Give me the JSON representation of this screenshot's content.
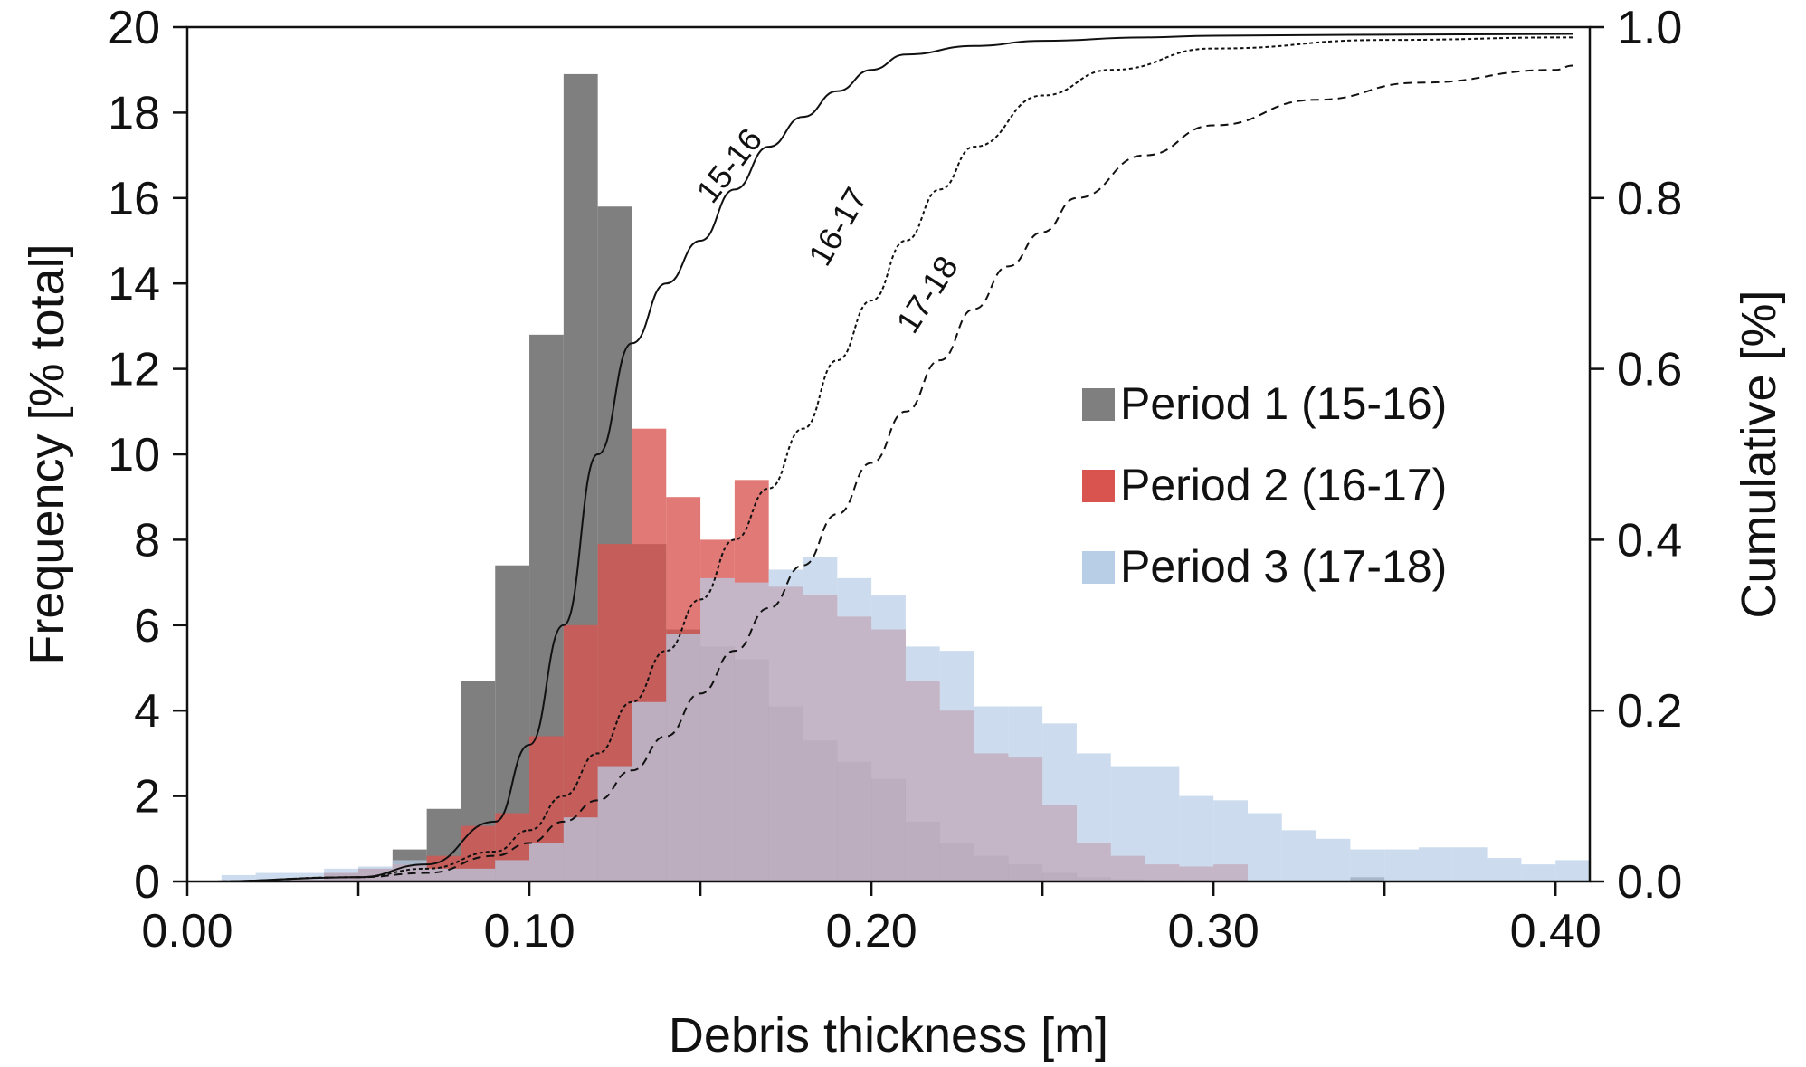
{
  "chart_data": {
    "type": "bar",
    "xlabel": "Debris thickness [m]",
    "ylabel": "Frequency [% total]",
    "y2label": "Cumulative [%]",
    "xlim": [
      0,
      0.41
    ],
    "ylim": [
      0,
      20
    ],
    "y2lim": [
      0,
      1.0
    ],
    "x_ticks": [
      "0.00",
      "0.10",
      "0.20",
      "0.30",
      "0.40"
    ],
    "y_ticks": [
      "0",
      "2",
      "4",
      "6",
      "8",
      "10",
      "12",
      "14",
      "16",
      "18",
      "20"
    ],
    "y2_ticks": [
      "0.0",
      "0.2",
      "0.4",
      "0.6",
      "0.8",
      "1.0"
    ],
    "bin_width": 0.01,
    "bin_starts": [
      0.0,
      0.01,
      0.02,
      0.03,
      0.04,
      0.05,
      0.06,
      0.07,
      0.08,
      0.09,
      0.1,
      0.11,
      0.12,
      0.13,
      0.14,
      0.15,
      0.16,
      0.17,
      0.18,
      0.19,
      0.2,
      0.21,
      0.22,
      0.23,
      0.24,
      0.25,
      0.26,
      0.27,
      0.28,
      0.29,
      0.3,
      0.31,
      0.32,
      0.33,
      0.34,
      0.35,
      0.36,
      0.37,
      0.38,
      0.39,
      0.4
    ],
    "legend_position": "right",
    "series": [
      {
        "name": "Period 1 (15-16)",
        "color": "#7f7f7f",
        "values": [
          0,
          0,
          0,
          0.05,
          0.2,
          0.3,
          0.75,
          1.7,
          4.7,
          7.4,
          12.8,
          18.9,
          15.8,
          7.9,
          5.9,
          5.5,
          5.2,
          4.1,
          3.3,
          2.8,
          2.4,
          1.4,
          0.9,
          0.6,
          0.4,
          0.2,
          0.1,
          0.05,
          0.03,
          0.02,
          0.02,
          0.02,
          0.01,
          0.01,
          0.1,
          0,
          0,
          0,
          0,
          0,
          0
        ]
      },
      {
        "name": "Period 2 (16-17)",
        "color": "#d9534f",
        "values": [
          0,
          0,
          0,
          0.05,
          0.2,
          0.3,
          0.4,
          0.6,
          1.3,
          1.6,
          3.4,
          6.0,
          7.9,
          10.6,
          9.0,
          8.0,
          9.4,
          6.9,
          6.7,
          6.2,
          5.9,
          4.7,
          4.0,
          3.0,
          2.9,
          1.8,
          0.9,
          0.6,
          0.4,
          0.35,
          0.4,
          0,
          0,
          0,
          0,
          0,
          0,
          0,
          0,
          0,
          0
        ]
      },
      {
        "name": "Period 3 (17-18)",
        "color": "#b8cde6",
        "values": [
          0,
          0.15,
          0.2,
          0.2,
          0.3,
          0.35,
          0.5,
          0.3,
          0.3,
          0.5,
          0.9,
          1.5,
          2.7,
          4.2,
          5.8,
          7.1,
          7.0,
          7.3,
          7.6,
          7.1,
          6.7,
          5.5,
          5.4,
          4.1,
          4.1,
          3.7,
          3.0,
          2.7,
          2.7,
          2.0,
          1.9,
          1.6,
          1.2,
          1.0,
          0.75,
          0.75,
          0.8,
          0.8,
          0.55,
          0.4,
          0.5
        ]
      }
    ],
    "cumulative": [
      {
        "label": "15-16",
        "style": "solid",
        "points": [
          [
            0.005,
            0.0
          ],
          [
            0.05,
            0.005
          ],
          [
            0.07,
            0.02
          ],
          [
            0.09,
            0.07
          ],
          [
            0.1,
            0.16
          ],
          [
            0.11,
            0.3
          ],
          [
            0.12,
            0.5
          ],
          [
            0.13,
            0.63
          ],
          [
            0.14,
            0.7
          ],
          [
            0.15,
            0.75
          ],
          [
            0.16,
            0.81
          ],
          [
            0.17,
            0.86
          ],
          [
            0.18,
            0.895
          ],
          [
            0.19,
            0.925
          ],
          [
            0.2,
            0.95
          ],
          [
            0.21,
            0.968
          ],
          [
            0.23,
            0.978
          ],
          [
            0.25,
            0.984
          ],
          [
            0.28,
            0.988
          ],
          [
            0.3,
            0.99
          ],
          [
            0.34,
            0.991
          ],
          [
            0.405,
            0.992
          ]
        ]
      },
      {
        "label": "16-17",
        "style": "dotted",
        "points": [
          [
            0.005,
            0.0
          ],
          [
            0.05,
            0.005
          ],
          [
            0.07,
            0.015
          ],
          [
            0.09,
            0.035
          ],
          [
            0.1,
            0.06
          ],
          [
            0.11,
            0.1
          ],
          [
            0.12,
            0.15
          ],
          [
            0.13,
            0.21
          ],
          [
            0.14,
            0.27
          ],
          [
            0.15,
            0.33
          ],
          [
            0.16,
            0.4
          ],
          [
            0.17,
            0.46
          ],
          [
            0.18,
            0.53
          ],
          [
            0.19,
            0.61
          ],
          [
            0.2,
            0.68
          ],
          [
            0.21,
            0.75
          ],
          [
            0.22,
            0.81
          ],
          [
            0.23,
            0.86
          ],
          [
            0.25,
            0.92
          ],
          [
            0.27,
            0.95
          ],
          [
            0.3,
            0.975
          ],
          [
            0.35,
            0.985
          ],
          [
            0.405,
            0.988
          ]
        ]
      },
      {
        "label": "17-18",
        "style": "dashed",
        "points": [
          [
            0.005,
            0.0
          ],
          [
            0.05,
            0.005
          ],
          [
            0.07,
            0.01
          ],
          [
            0.09,
            0.03
          ],
          [
            0.1,
            0.045
          ],
          [
            0.11,
            0.07
          ],
          [
            0.12,
            0.095
          ],
          [
            0.13,
            0.13
          ],
          [
            0.14,
            0.17
          ],
          [
            0.15,
            0.22
          ],
          [
            0.16,
            0.27
          ],
          [
            0.17,
            0.32
          ],
          [
            0.18,
            0.37
          ],
          [
            0.19,
            0.43
          ],
          [
            0.2,
            0.49
          ],
          [
            0.21,
            0.55
          ],
          [
            0.22,
            0.61
          ],
          [
            0.23,
            0.67
          ],
          [
            0.24,
            0.72
          ],
          [
            0.25,
            0.76
          ],
          [
            0.26,
            0.8
          ],
          [
            0.28,
            0.85
          ],
          [
            0.3,
            0.885
          ],
          [
            0.33,
            0.915
          ],
          [
            0.36,
            0.935
          ],
          [
            0.4,
            0.95
          ],
          [
            0.405,
            0.955
          ]
        ]
      }
    ]
  }
}
